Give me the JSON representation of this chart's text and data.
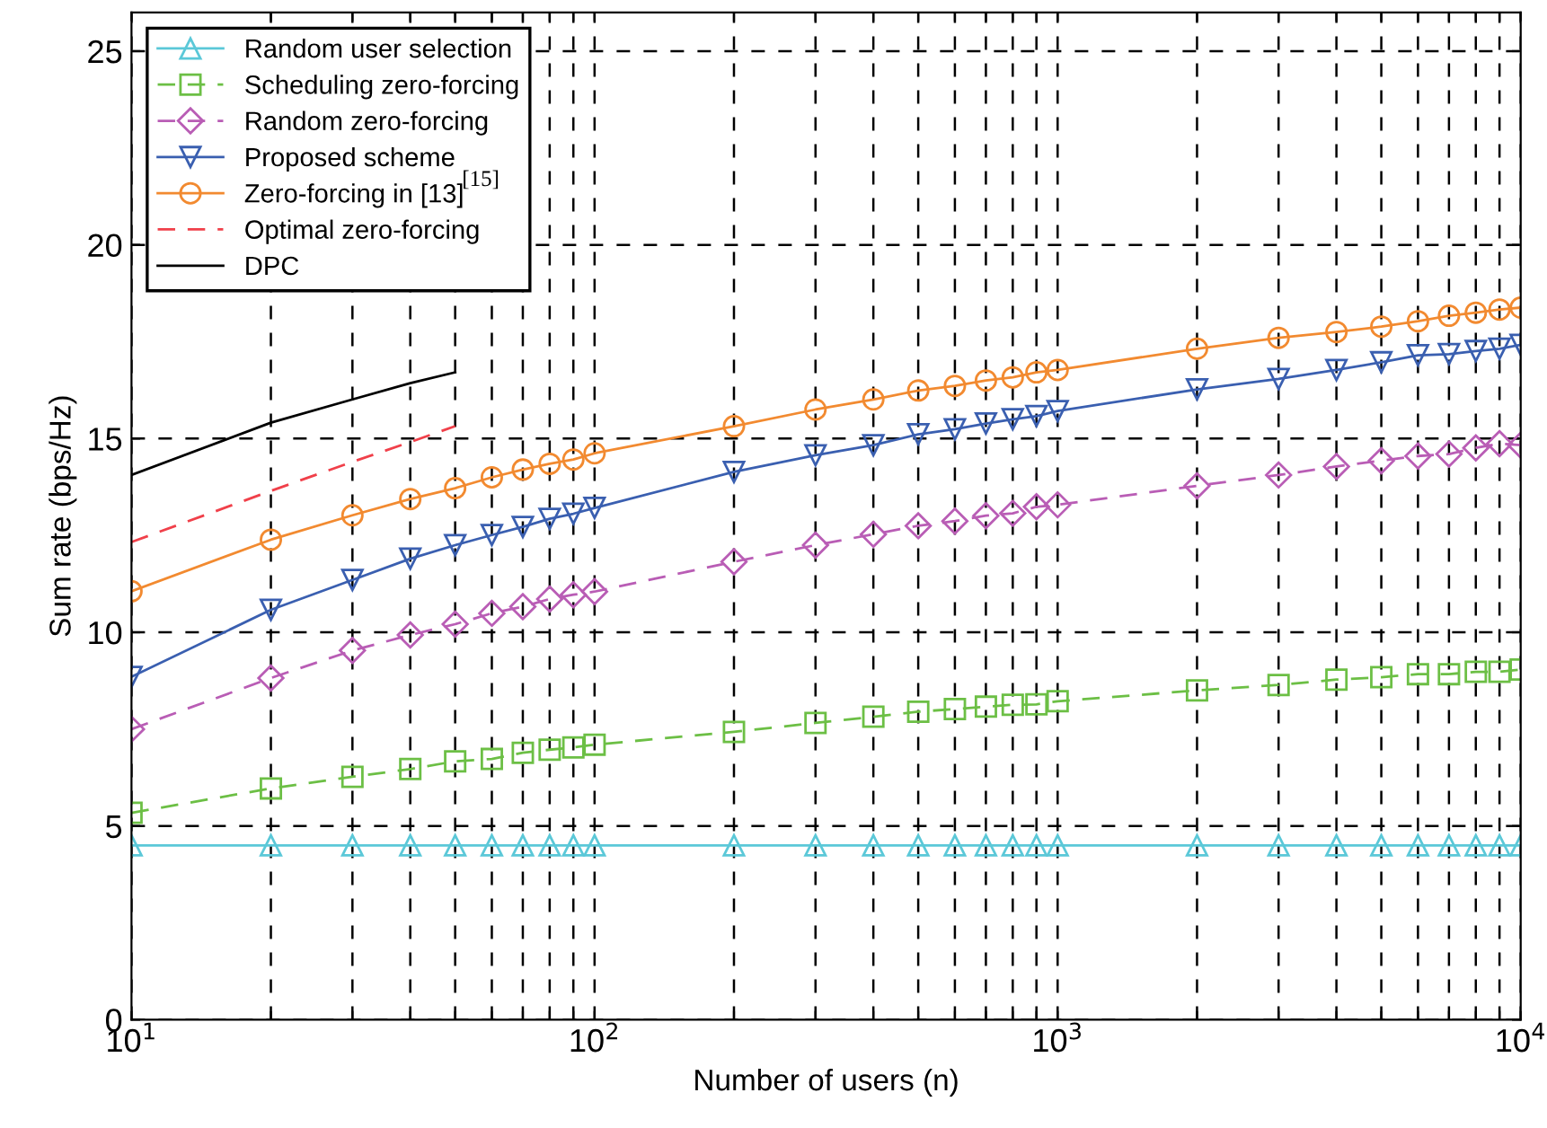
{
  "chart_data": {
    "type": "line",
    "xlabel": "Number of users (n)",
    "ylabel": "Sum rate (bps/Hz)",
    "log": "x",
    "xlim": [
      10,
      10000
    ],
    "ylim": [
      0,
      26
    ],
    "xticks": [
      {
        "value": 10,
        "label": "10$^{1}$"
      },
      {
        "value": 20,
        "label": null
      },
      {
        "value": 30,
        "label": null
      },
      {
        "value": 40,
        "label": null
      },
      {
        "value": 50,
        "label": null
      },
      {
        "value": 60,
        "label": null
      },
      {
        "value": 70,
        "label": null
      },
      {
        "value": 80,
        "label": null
      },
      {
        "value": 90,
        "label": null
      },
      {
        "value": 100,
        "label": "10$^{2}$"
      },
      {
        "value": 200,
        "label": null
      },
      {
        "value": 300,
        "label": null
      },
      {
        "value": 400,
        "label": null
      },
      {
        "value": 500,
        "label": null
      },
      {
        "value": 600,
        "label": null
      },
      {
        "value": 700,
        "label": null
      },
      {
        "value": 800,
        "label": null
      },
      {
        "value": 900,
        "label": null
      },
      {
        "value": 1000,
        "label": "10$^{3}$"
      },
      {
        "value": 2000,
        "label": null
      },
      {
        "value": 3000,
        "label": null
      },
      {
        "value": 4000,
        "label": null
      },
      {
        "value": 5000,
        "label": null
      },
      {
        "value": 6000,
        "label": null
      },
      {
        "value": 7000,
        "label": null
      },
      {
        "value": 8000,
        "label": null
      },
      {
        "value": 9000,
        "label": null
      },
      {
        "value": 10000,
        "label": "10$^{4}$"
      }
    ],
    "yticks": [
      0,
      5,
      10,
      15,
      20,
      25
    ],
    "grid": true,
    "legend": "top left",
    "annotations": [
      "[15]"
    ],
    "x": [
      10,
      20,
      30,
      40,
      50,
      60,
      70,
      80,
      90,
      100,
      200,
      300,
      400,
      500,
      600,
      700,
      800,
      900,
      1000,
      2000,
      3000,
      4000,
      5000,
      6000,
      7000,
      8000,
      9000,
      10000
    ],
    "series": [
      {
        "name": "Random user selection",
        "color": "#5bc8d8",
        "marker": "triangle",
        "line_style": "solid",
        "values": [
          4.5,
          4.5,
          4.5,
          4.5,
          4.5,
          4.5,
          4.5,
          4.5,
          4.5,
          4.5,
          4.5,
          4.5,
          4.5,
          4.5,
          4.5,
          4.5,
          4.5,
          4.5,
          4.5,
          4.5,
          4.5,
          4.5,
          4.5,
          4.5,
          4.5,
          4.5,
          4.5,
          4.5
        ]
      },
      {
        "name": "Scheduling zero-forcing",
        "color": "#6cbf45",
        "marker": "square",
        "line_style": "dashed",
        "values": [
          5.34,
          5.97,
          6.27,
          6.47,
          6.67,
          6.73,
          6.89,
          6.97,
          7.03,
          7.1,
          7.43,
          7.66,
          7.82,
          7.95,
          8.02,
          8.08,
          8.13,
          8.14,
          8.22,
          8.5,
          8.64,
          8.78,
          8.84,
          8.92,
          8.92,
          8.98,
          8.98,
          9.04
        ]
      },
      {
        "name": "Random zero-forcing",
        "color": "#b95db5",
        "marker": "diamond",
        "line_style": "dashed",
        "values": [
          7.5,
          8.82,
          9.53,
          9.93,
          10.21,
          10.49,
          10.66,
          10.86,
          10.97,
          11.05,
          11.82,
          12.25,
          12.53,
          12.75,
          12.87,
          13.01,
          13.07,
          13.24,
          13.29,
          13.78,
          14.06,
          14.28,
          14.43,
          14.55,
          14.6,
          14.76,
          14.87,
          14.83
        ]
      },
      {
        "name": "Proposed scheme",
        "color": "#3a5fb0",
        "marker": "triangle_down",
        "line_style": "solid",
        "values": [
          8.85,
          10.58,
          11.35,
          11.9,
          12.25,
          12.51,
          12.72,
          12.93,
          13.06,
          13.21,
          14.14,
          14.57,
          14.83,
          15.11,
          15.24,
          15.39,
          15.5,
          15.58,
          15.71,
          16.27,
          16.54,
          16.77,
          16.97,
          17.15,
          17.18,
          17.26,
          17.32,
          17.42
        ]
      },
      {
        "name": "Zero-forcing in [13]",
        "color": "#f28a30",
        "marker": "circle",
        "line_style": "solid",
        "values": [
          11.06,
          12.39,
          13.02,
          13.44,
          13.72,
          14.0,
          14.2,
          14.35,
          14.46,
          14.62,
          15.32,
          15.75,
          16.01,
          16.24,
          16.36,
          16.5,
          16.58,
          16.71,
          16.77,
          17.32,
          17.6,
          17.75,
          17.89,
          18.03,
          18.17,
          18.25,
          18.33,
          18.38
        ]
      },
      {
        "name": "Optimal zero-forcing",
        "color": "#f0404a",
        "marker": "none",
        "line_style": "dashed",
        "x": [
          10,
          20,
          30,
          40,
          50
        ],
        "values": [
          12.33,
          13.65,
          14.4,
          14.91,
          15.32
        ]
      },
      {
        "name": "DPC",
        "color": "#000000",
        "marker": "none",
        "line_style": "solid",
        "x": [
          10,
          20,
          30,
          40,
          50
        ],
        "values": [
          14.06,
          15.41,
          16.01,
          16.43,
          16.71
        ]
      }
    ]
  }
}
